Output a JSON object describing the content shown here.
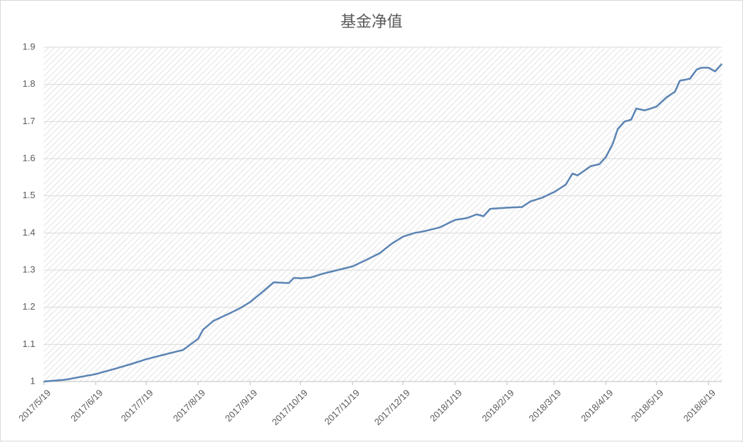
{
  "chart_data": {
    "type": "line",
    "title": "基金净值",
    "x": [
      "2017/5/19",
      "2017/6/1",
      "2017/6/19",
      "2017/7/1",
      "2017/7/10",
      "2017/7/19",
      "2017/8/1",
      "2017/8/10",
      "2017/8/19",
      "2017/8/22",
      "2017/8/28",
      "2017/9/5",
      "2017/9/12",
      "2017/9/19",
      "2017/9/26",
      "2017/10/3",
      "2017/10/12",
      "2017/10/15",
      "2017/10/19",
      "2017/10/25",
      "2017/11/1",
      "2017/11/10",
      "2017/11/19",
      "2017/11/26",
      "2017/12/5",
      "2017/12/12",
      "2017/12/19",
      "2017/12/26",
      "2018/1/1",
      "2018/1/10",
      "2018/1/19",
      "2018/1/26",
      "2018/2/1",
      "2018/2/5",
      "2018/2/9",
      "2018/2/19",
      "2018/2/28",
      "2018/3/5",
      "2018/3/12",
      "2018/3/19",
      "2018/3/26",
      "2018/3/30",
      "2018/4/2",
      "2018/4/10",
      "2018/4/15",
      "2018/4/19",
      "2018/4/23",
      "2018/4/26",
      "2018/4/30",
      "2018/5/4",
      "2018/5/7",
      "2018/5/12",
      "2018/5/19",
      "2018/5/25",
      "2018/5/30",
      "2018/6/2",
      "2018/6/8",
      "2018/6/12",
      "2018/6/15",
      "2018/6/19",
      "2018/6/23",
      "2018/6/27"
    ],
    "series": [
      {
        "name": "基金净值",
        "color": "#5b84b4",
        "values": [
          1.0,
          1.005,
          1.02,
          1.035,
          1.047,
          1.06,
          1.075,
          1.085,
          1.115,
          1.14,
          1.163,
          1.18,
          1.195,
          1.214,
          1.24,
          1.267,
          1.265,
          1.279,
          1.278,
          1.28,
          1.29,
          1.3,
          1.31,
          1.325,
          1.345,
          1.37,
          1.39,
          1.4,
          1.405,
          1.415,
          1.435,
          1.44,
          1.45,
          1.445,
          1.465,
          1.468,
          1.47,
          1.485,
          1.495,
          1.51,
          1.53,
          1.56,
          1.555,
          1.58,
          1.585,
          1.605,
          1.64,
          1.68,
          1.7,
          1.705,
          1.735,
          1.73,
          1.74,
          1.765,
          1.78,
          1.81,
          1.815,
          1.84,
          1.845,
          1.845,
          1.835,
          1.855
        ]
      }
    ],
    "xlim": [
      "2017/5/19",
      "2018/6/27"
    ],
    "xticks": [
      "2017/5/19",
      "2017/6/19",
      "2017/7/19",
      "2017/8/19",
      "2017/9/19",
      "2017/10/19",
      "2017/11/19",
      "2017/12/19",
      "2018/1/19",
      "2018/2/19",
      "2018/3/19",
      "2018/4/19",
      "2018/5/19",
      "2018/6/19"
    ],
    "ylim": [
      1,
      1.9
    ],
    "yticks": [
      1,
      1.1,
      1.2,
      1.3,
      1.4,
      1.5,
      1.6,
      1.7,
      1.8,
      1.9
    ],
    "grid": true
  }
}
